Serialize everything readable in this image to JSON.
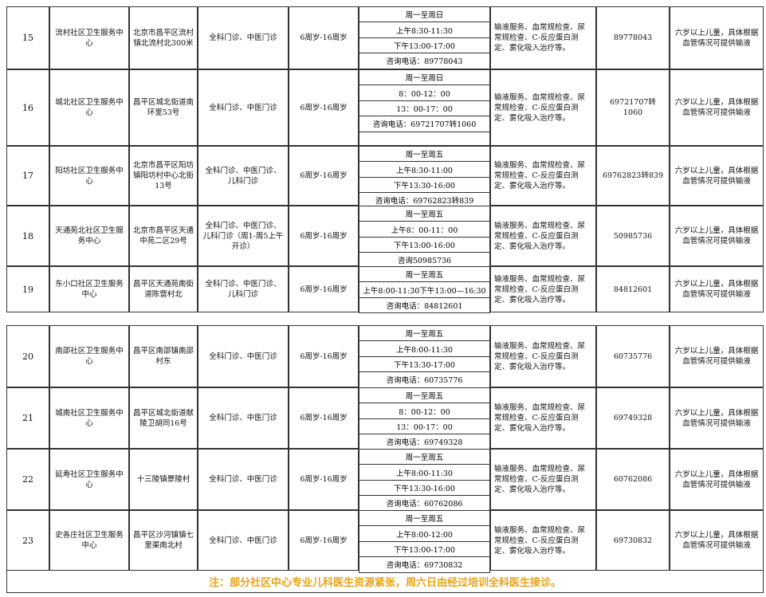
{
  "blocks": [
    {
      "rows": [
        {
          "no": "15",
          "name": "流村社区卫生服务中心",
          "address": "北京市昌平区流村镇北流村北300米",
          "departments": "全科门诊、中医门诊",
          "age": "6周岁-16周岁",
          "hours": [
            "周一至周日",
            "上午8:30-11:30",
            "下午13:00-17:00",
            "咨询电话：89778043"
          ],
          "services": "输液服务、血常规检查、尿常规检查、C-反应蛋白测定、雾化吸入治疗等。",
          "phone": "89778043",
          "note": "六岁以上儿童，具体根据血管情况可提供输液"
        },
        {
          "no": "16",
          "name": "城北社区卫生服务中心",
          "address": "昌平区城北街道南环里53号",
          "departments": "全科门诊、中医门诊",
          "age": "6周岁-16周岁",
          "hours": [
            "周一至周日",
            "8：00-12：00",
            "13：00-17：00",
            "咨询电话：69721707转1060"
          ],
          "services": "输液服务、血常规检查、尿常规检查、C-反应蛋白测定、雾化吸入治疗等。",
          "phone": "69721707转1060",
          "note": "六岁以上儿童，具体根据血管情况可提供输液"
        },
        {
          "no": "17",
          "name": "阳坊社区卫生服务中心",
          "address": "北京市昌平区阳坊镇阳坊村中心北街13号",
          "departments": "全科门诊、中医门诊、儿科门诊",
          "age": "6周岁-16周岁",
          "hours": [
            "周一至周五",
            "上午8:30-11:00",
            "下午13:30-16:00",
            "咨询电话：69762823转839"
          ],
          "services": "输液服务、血常规检查、尿常规检查、C-反应蛋白测定、雾化吸入治疗等。",
          "phone": "69762823转839",
          "note": "六岁以上儿童，具体根据血管情况可提供输液"
        },
        {
          "no": "18",
          "name": "天通苑北社区卫生服务中心",
          "address": "北京市昌平区天通中苑二区29号",
          "departments": "全科门诊、中医门诊、儿科门诊（周1-周5上午开诊）",
          "age": "6周岁-16周岁",
          "hours": [
            "周一至周五",
            "上午8：00-11：00",
            "下午13:00-16:00",
            "咨询50985736"
          ],
          "services": "输液服务、血常规检查、尿常规检查、C-反应蛋白测定、雾化吸入治疗等。",
          "phone": "50985736",
          "note": "六岁以上儿童，具体根据血管情况可提供输液"
        },
        {
          "no": "19",
          "name": "东小口社区卫生服务中心",
          "address": "昌平区天通苑南街道陈营村北",
          "departments": "全科门诊、中医门诊、儿科门诊",
          "age": "6周岁-16周岁",
          "hours": [
            "周一至周五",
            "上午8:00-11:30下午13:00—16:30",
            "咨询电话：84812601"
          ],
          "services": "输液服务、血常规检查、尿常规检查、C-反应蛋白测定、雾化吸入治疗等。",
          "phone": "84812601",
          "note": "六岁以上儿童，具体根据血管情况可提供输液"
        }
      ]
    },
    {
      "rows": [
        {
          "no": "20",
          "name": "南邵社区卫生服务中心",
          "address": "昌平区南邵镇南邵村东",
          "departments": "全科门诊、中医门诊",
          "age": "6周岁-16周岁",
          "hours": [
            "周一至周五",
            "上午8:00-11:30",
            "下午13:30-17:00",
            "咨询电话：60735776"
          ],
          "services": "输液服务、血常规检查、尿常规检查、C-反应蛋白测定、雾化吸入治疗等。",
          "phone": "60735776",
          "note": "六岁以上儿童，具体根据血管情况可提供输液"
        },
        {
          "no": "21",
          "name": "城南社区卫生服务中心",
          "address": "昌平区城北街道献陵卫胡同16号",
          "departments": "全科门诊、中医门诊",
          "age": "6周岁-16周岁",
          "hours": [
            "周一至周五",
            "8：00-12：00",
            "13：00-17：00",
            "咨询电话：69749328"
          ],
          "services": "输液服务、血常规检查、尿常规检查、C-反应蛋白测定、雾化吸入治疗等。",
          "phone": "69749328",
          "note": "六岁以上儿童，具体根据血管情况可提供输液"
        },
        {
          "no": "22",
          "name": "延寿社区卫生服务中心",
          "address": "十三陵镇景陵村",
          "departments": "全科门诊、中医门诊",
          "age": "6周岁-16周岁",
          "hours": [
            "周一至周五",
            "上午8:00-11:30",
            "下午13:30-16:00",
            "咨询电话：60762086"
          ],
          "services": "输液服务、血常规检查、尿常规检查、C-反应蛋白测定、雾化吸入治疗等。",
          "phone": "60762086",
          "note": "六岁以上儿童，具体根据血管情况可提供输液"
        },
        {
          "no": "23",
          "name": "史各庄社区卫生服务中心",
          "address": "昌平区沙河镇镇七里渠南北村",
          "departments": "全科门诊、中医门诊",
          "age": "6周岁-16周岁",
          "hours": [
            "周一至周五",
            "上午8:00-12:00",
            "下午13:00-17:00",
            "咨询电话：69730832"
          ],
          "services": "输液服务、血常规检查、尿常规检查、C-反应蛋白测定、雾化吸入治疗等。",
          "phone": "69730832",
          "note": "六岁以上儿童，具体根据血管情况可提供输液"
        }
      ]
    }
  ],
  "footer_note": "注：部分社区中心专业儿科医生资源紧张，周六日由经过培训全科医生接诊。"
}
